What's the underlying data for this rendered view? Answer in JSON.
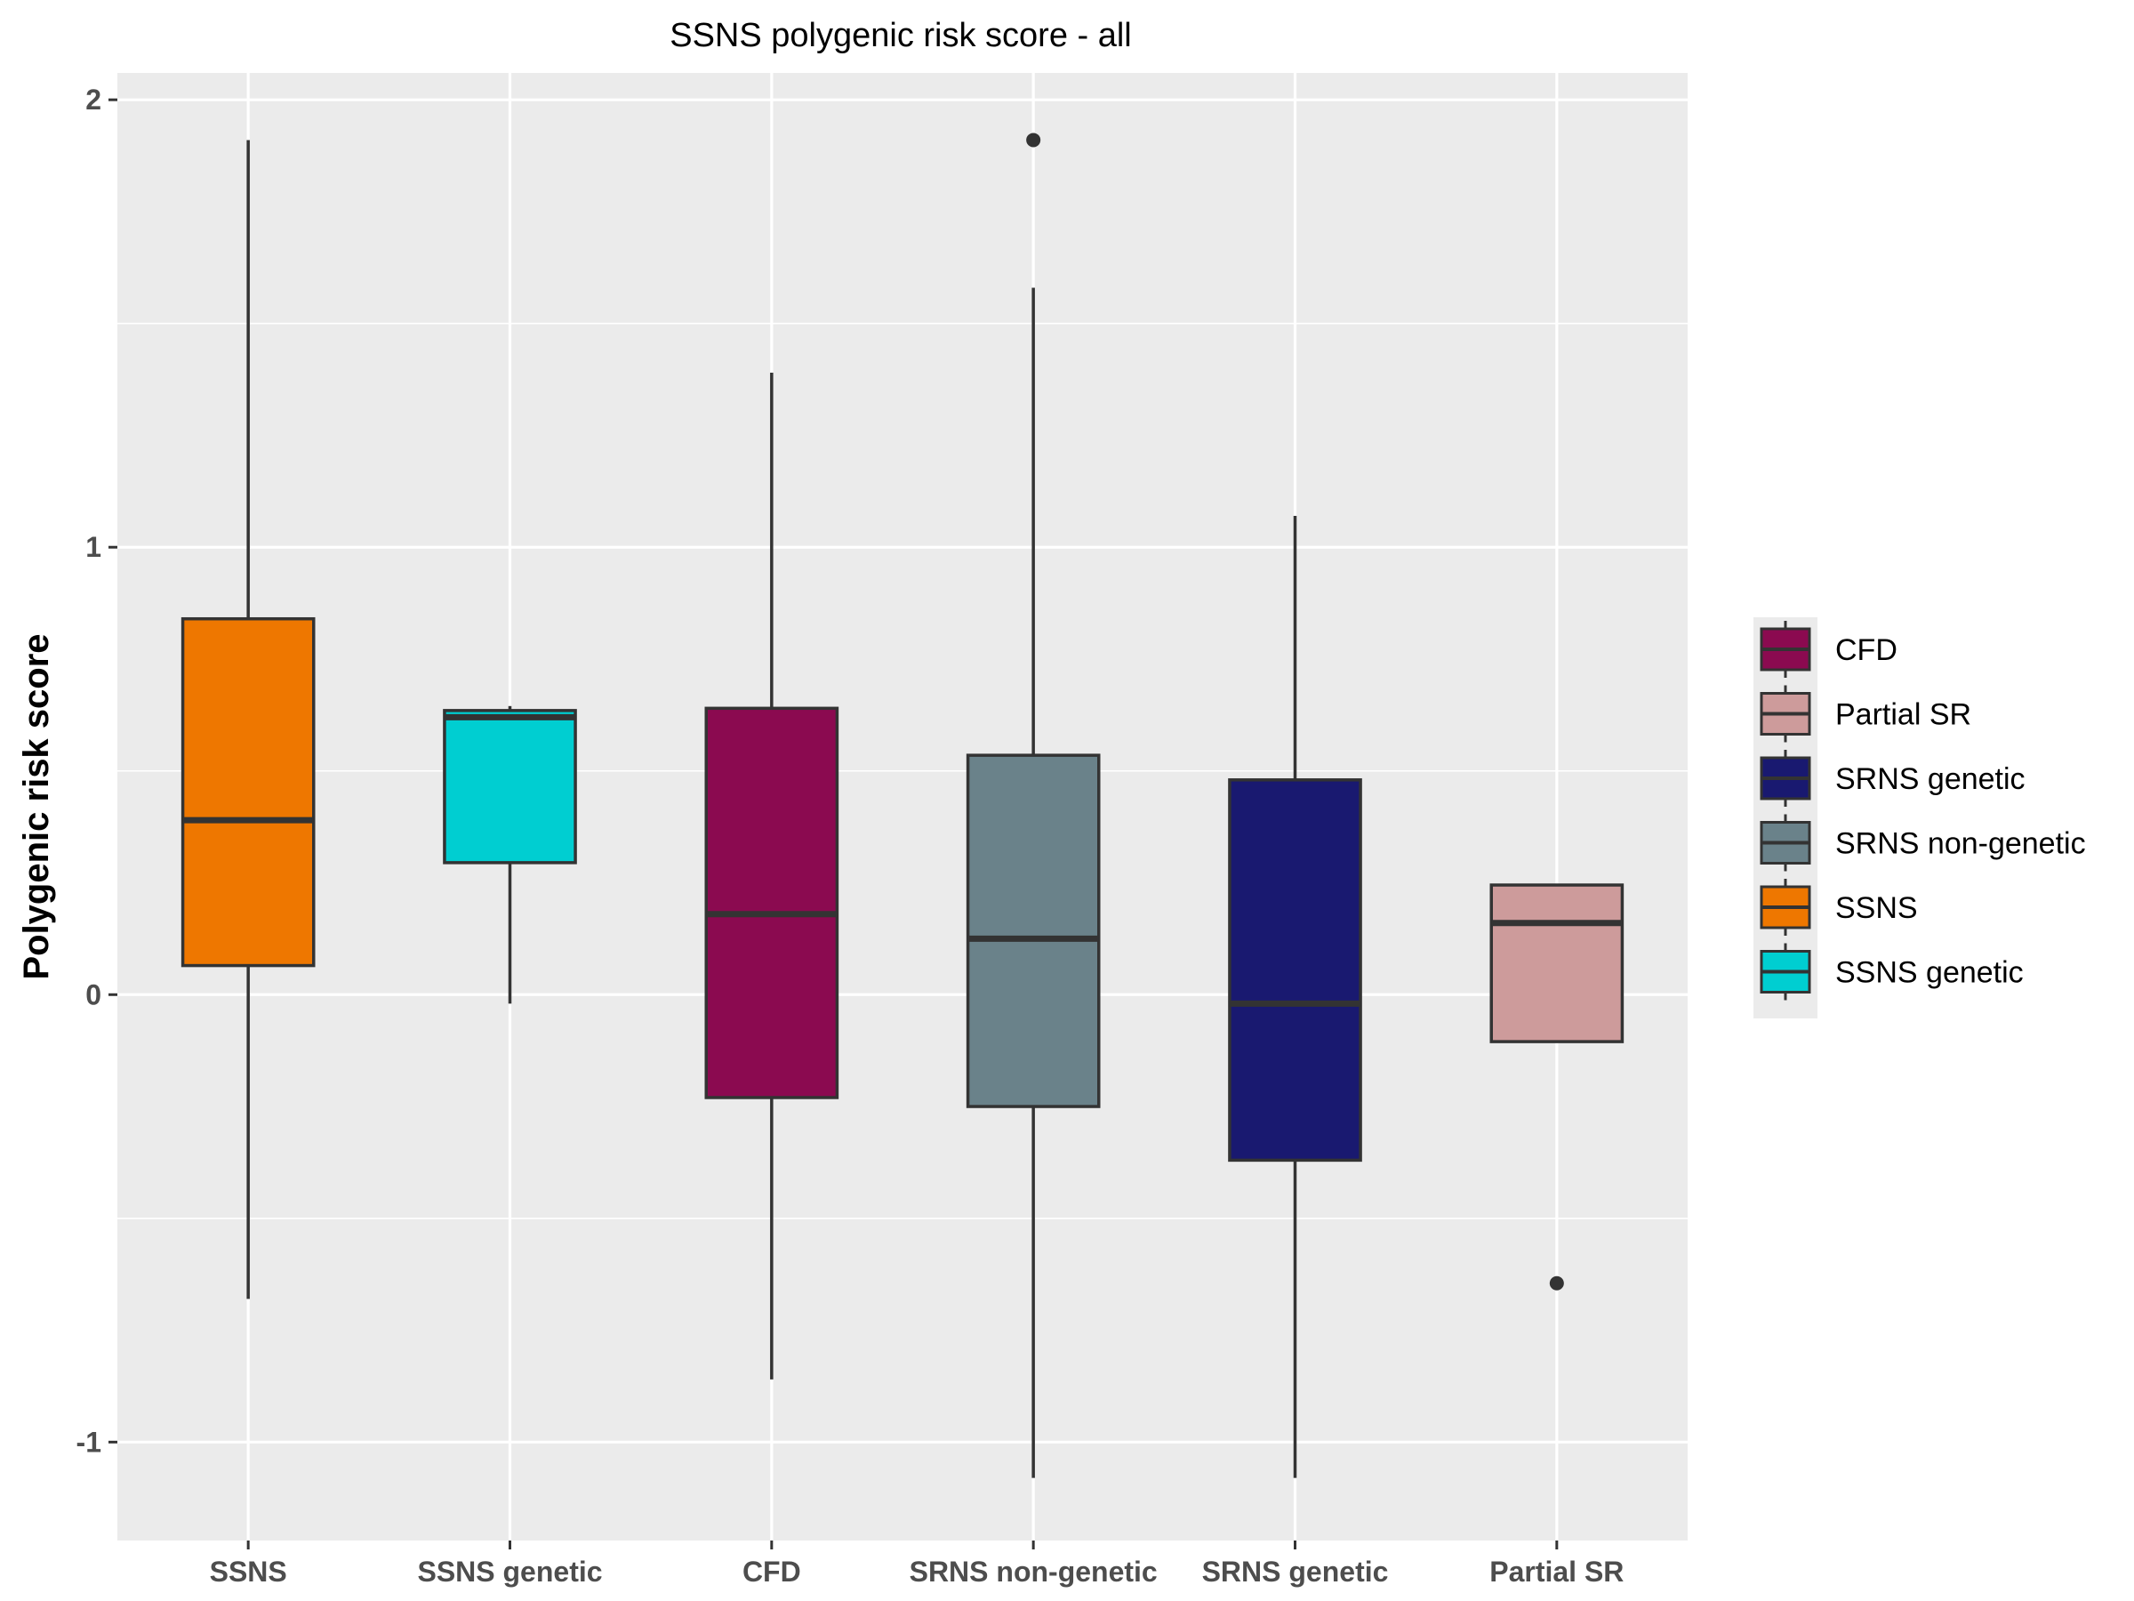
{
  "chart_data": {
    "type": "boxplot",
    "title": "SSNS polygenic risk score - all",
    "xlabel": "",
    "ylabel": "Polygenic risk score",
    "ylim": [
      -1.22,
      2.06
    ],
    "y_ticks": [
      -1,
      0,
      1,
      2
    ],
    "y_tick_labels": [
      "-1",
      "0",
      "1",
      "2"
    ],
    "grid": true,
    "legend_position": "right",
    "categories": [
      "SSNS",
      "SSNS genetic",
      "CFD",
      "SRNS non-genetic",
      "SRNS genetic",
      "Partial SR"
    ],
    "boxes": [
      {
        "category": "SSNS",
        "color": "#EE7700",
        "whisker_low": -0.68,
        "q1": 0.065,
        "median": 0.39,
        "q3": 0.84,
        "whisker_high": 1.91,
        "outliers": []
      },
      {
        "category": "SSNS genetic",
        "color": "#00CED1",
        "whisker_low": -0.02,
        "q1": 0.295,
        "median": 0.62,
        "q3": 0.635,
        "whisker_high": 0.645,
        "outliers": []
      },
      {
        "category": "CFD",
        "color": "#8B0A50",
        "whisker_low": -0.86,
        "q1": -0.23,
        "median": 0.18,
        "q3": 0.64,
        "whisker_high": 1.39,
        "outliers": []
      },
      {
        "category": "SRNS non-genetic",
        "color": "#6A828A",
        "whisker_low": -1.08,
        "q1": -0.25,
        "median": 0.125,
        "q3": 0.535,
        "whisker_high": 1.58,
        "outliers": [
          1.91
        ]
      },
      {
        "category": "SRNS genetic",
        "color": "#191970",
        "whisker_low": -1.08,
        "q1": -0.37,
        "median": -0.02,
        "q3": 0.48,
        "whisker_high": 1.07,
        "outliers": []
      },
      {
        "category": "Partial SR",
        "color": "#CD9B9B",
        "whisker_low": -0.105,
        "q1": -0.105,
        "median": 0.16,
        "q3": 0.245,
        "whisker_high": 0.245,
        "outliers": [
          -0.645
        ]
      }
    ],
    "legend": [
      {
        "label": "CFD",
        "color": "#8B0A50"
      },
      {
        "label": "Partial SR",
        "color": "#CD9B9B"
      },
      {
        "label": "SRNS genetic",
        "color": "#191970"
      },
      {
        "label": "SRNS non-genetic",
        "color": "#6A828A"
      },
      {
        "label": "SSNS",
        "color": "#EE7700"
      },
      {
        "label": "SSNS genetic",
        "color": "#00CED1"
      }
    ],
    "panel_background": "#EBEBEB",
    "grid_color": "#FFFFFF",
    "box_outline_color": "#333333"
  }
}
